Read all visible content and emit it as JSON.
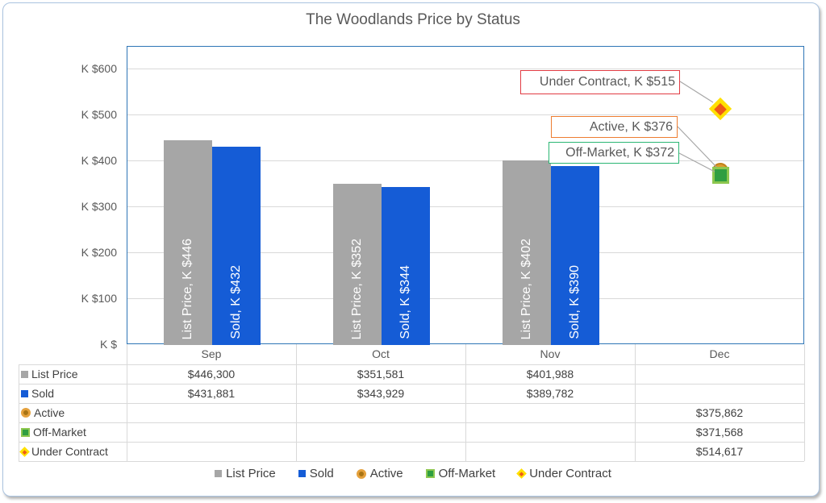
{
  "title": "The Woodlands Price by Status",
  "colors": {
    "list_price_bar": "#a6a6a6",
    "sold_bar": "#155cd6",
    "active_marker": "#db9b2e",
    "off_market_fill": "#2f9e41",
    "off_market_border": "#8dc74f",
    "under_contract_outer": "#ffe000",
    "under_contract_inner": "#ee5a17",
    "callout_under_contract_border": "#e13b43",
    "callout_active_border": "#ed7d31",
    "callout_off_market_border": "#2bb673",
    "plot_border": "#2e75b6",
    "gridline": "#d9d9d9",
    "axis_text": "#595959"
  },
  "chart_data": {
    "type": "bar",
    "title": "The Woodlands Price by Status",
    "categories": [
      "Sep",
      "Oct",
      "Nov",
      "Dec"
    ],
    "series": [
      {
        "name": "List Price",
        "type": "bar",
        "values": [
          446300,
          351581,
          401988,
          null
        ],
        "labels": [
          "List Price, K $446",
          "List Price, K $352",
          "List Price, K $402",
          ""
        ]
      },
      {
        "name": "Sold",
        "type": "bar",
        "values": [
          431881,
          343929,
          389782,
          null
        ],
        "labels": [
          "Sold, K $432",
          "Sold, K $344",
          "Sold, K $390",
          ""
        ]
      },
      {
        "name": "Active",
        "type": "scatter",
        "marker": "circle",
        "values": [
          null,
          null,
          null,
          375862
        ]
      },
      {
        "name": "Off-Market",
        "type": "scatter",
        "marker": "square",
        "values": [
          null,
          null,
          null,
          371568
        ]
      },
      {
        "name": "Under Contract",
        "type": "scatter",
        "marker": "diamond",
        "values": [
          null,
          null,
          null,
          514617
        ]
      }
    ],
    "callouts": [
      {
        "text": "Under Contract, K $515",
        "series": "Under Contract"
      },
      {
        "text": "Active, K $376",
        "series": "Active"
      },
      {
        "text": "Off-Market, K $372",
        "series": "Off-Market"
      }
    ],
    "y_ticks": [
      "K $600",
      "K $500",
      "K $400",
      "K $300",
      "K $200",
      "K $100",
      "K $"
    ],
    "y_tick_values": [
      600,
      500,
      400,
      300,
      200,
      100,
      0
    ],
    "ylim": [
      0,
      650
    ],
    "grid": true,
    "legend_position": "bottom"
  },
  "table": {
    "columns": [
      "Sep",
      "Oct",
      "Nov",
      "Dec"
    ],
    "rows": [
      {
        "label": "List Price",
        "key": "k-sq-gray",
        "values": [
          "$446,300",
          "$351,581",
          "$401,988",
          ""
        ]
      },
      {
        "label": "Sold",
        "key": "k-sq-blue",
        "values": [
          "$431,881",
          "$343,929",
          "$389,782",
          ""
        ]
      },
      {
        "label": "Active",
        "key": "k-circ-orange",
        "values": [
          "",
          "",
          "",
          "$375,862"
        ]
      },
      {
        "label": "Off-Market",
        "key": "k-sq-green",
        "values": [
          "",
          "",
          "",
          "$371,568"
        ]
      },
      {
        "label": "Under Contract",
        "key": "k-diam-yellow",
        "values": [
          "",
          "",
          "",
          "$514,617"
        ]
      }
    ]
  },
  "legend": {
    "items": [
      {
        "label": "List Price",
        "key": "k-sq-gray"
      },
      {
        "label": "Sold",
        "key": "k-sq-blue"
      },
      {
        "label": "Active",
        "key": "k-circ-orange"
      },
      {
        "label": "Off-Market",
        "key": "k-sq-green"
      },
      {
        "label": "Under Contract",
        "key": "k-diam-yellow"
      }
    ]
  }
}
